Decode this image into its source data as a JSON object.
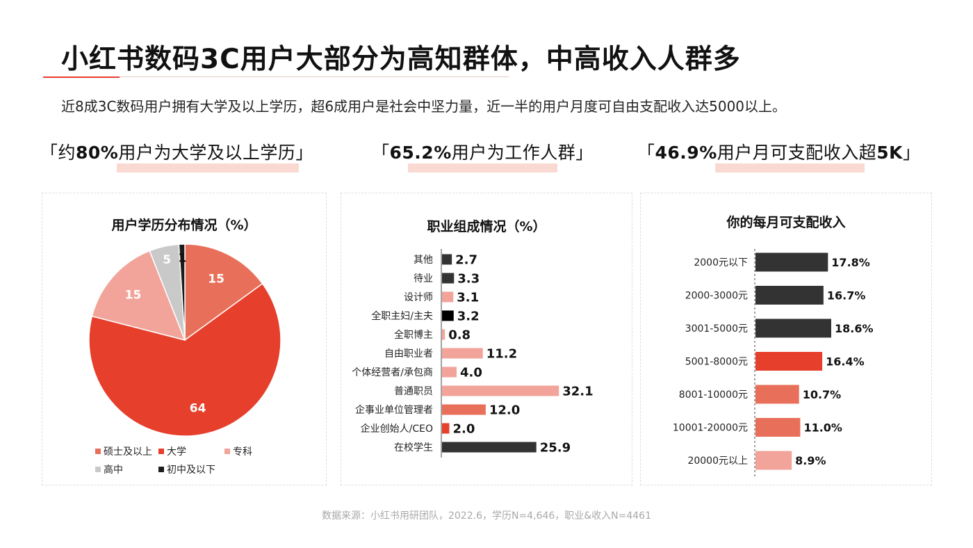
{
  "header": {
    "title": "小红书数码3C用户大部分为高知群体，中高收入人群多",
    "subtitle": "近8成3C数码用户拥有大学及以上学历，超6成用户是社会中坚力量，近一半的用户月度可自由支配收入达5000以上。"
  },
  "highlights": [
    {
      "open": "「约",
      "bold": "80%",
      "rest": "用户为大学及以上学历」"
    },
    {
      "open": "「",
      "bold": "65.2%",
      "rest": "用户为工作人群」"
    },
    {
      "open": "「",
      "bold": "46.9%",
      "rest": "用户月可支配收入超",
      "bold2": "5K",
      "close": "」"
    }
  ],
  "source": "数据来源：小红书用研团队，2022.6，学历N=4,646，职业&收入N=4461",
  "chart_data": [
    {
      "type": "pie",
      "title": "用户学历分布情况（%）",
      "categories": [
        "硕士及以上",
        "大学",
        "专科",
        "高中",
        "初中及以下"
      ],
      "values": [
        15,
        64,
        15,
        5,
        1
      ],
      "colors": [
        "#e8705a",
        "#e63f2c",
        "#f2a49a",
        "#c9c9c9",
        "#1c1c1c"
      ],
      "legend_placement": "bottom"
    },
    {
      "type": "bar",
      "orientation": "horizontal",
      "title": "职业组成情况（%）",
      "categories": [
        "其他",
        "待业",
        "设计师",
        "全职主妇/主夫",
        "全职博主",
        "自由职业者",
        "个体经营者/承包商",
        "普通职员",
        "企事业单位管理者",
        "企业创始人/CEO",
        "在校学生"
      ],
      "values": [
        2.7,
        3.3,
        3.1,
        3.2,
        0.8,
        11.2,
        4.0,
        32.1,
        12.0,
        2.0,
        25.9
      ],
      "labels": [
        "2.7",
        "3.3",
        "3.1",
        "3.2",
        "0.8",
        "11.2",
        "4.0",
        "32.1",
        "12.0",
        "2.0",
        "25.9"
      ],
      "colors": [
        "#333333",
        "#333333",
        "#f2a49a",
        "#000000",
        "#f2a49a",
        "#f2a49a",
        "#f2a49a",
        "#f2a49a",
        "#e8705a",
        "#e63f2c",
        "#333333"
      ]
    },
    {
      "type": "bar",
      "orientation": "horizontal",
      "title": "你的每月可支配收入",
      "categories": [
        "2000元以下",
        "2000-3000元",
        "3001-5000元",
        "5001-8000元",
        "8001-10000元",
        "10001-20000元",
        "20000元以上"
      ],
      "values": [
        17.8,
        16.7,
        18.6,
        16.4,
        10.7,
        11.0,
        8.9
      ],
      "labels": [
        "17.8%",
        "16.7%",
        "18.6%",
        "16.4%",
        "10.7%",
        "11.0%",
        "8.9%"
      ],
      "colors": [
        "#333333",
        "#333333",
        "#333333",
        "#e63f2c",
        "#e8705a",
        "#e8705a",
        "#f2a49a"
      ]
    }
  ]
}
